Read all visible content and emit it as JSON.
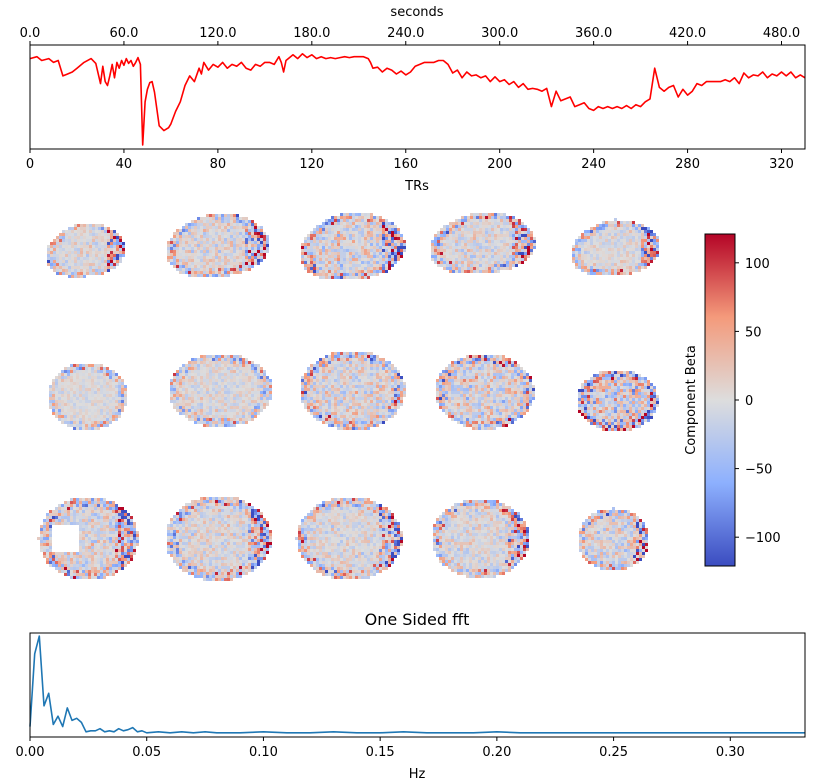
{
  "chart_data": [
    {
      "type": "line",
      "name": "component-timeseries",
      "xlabel": "TRs",
      "x_ticks": [
        0,
        40,
        80,
        120,
        160,
        200,
        240,
        280,
        320
      ],
      "x_tick_labels": [
        "0",
        "40",
        "80",
        "120",
        "160",
        "200",
        "240",
        "280",
        "320"
      ],
      "xlim": [
        0,
        330
      ],
      "top_xlabel": "seconds",
      "top_x_ticks_seconds": [
        0,
        60,
        120,
        180,
        240,
        300,
        360,
        420,
        480
      ],
      "top_x_tick_labels": [
        "0.0",
        "60.0",
        "120.0",
        "180.0",
        "240.0",
        "300.0",
        "360.0",
        "420.0",
        "480.0"
      ],
      "top_xlim": [
        0,
        495
      ],
      "ylim": [
        0,
        1
      ],
      "y_visible": false,
      "line_color": "#ff0000",
      "series_name": "timeseries",
      "x": [
        0,
        3,
        5,
        8,
        10,
        12,
        14,
        16,
        18,
        20,
        23,
        26,
        28,
        30,
        31,
        32,
        33,
        34,
        35,
        36,
        37,
        38,
        39,
        40,
        41,
        42,
        43,
        44,
        45,
        46,
        47,
        48,
        49,
        50,
        51,
        52,
        53,
        55,
        57,
        59,
        60,
        62,
        64,
        66,
        68,
        70,
        72,
        73,
        74,
        76,
        78,
        80,
        82,
        84,
        86,
        88,
        90,
        92,
        94,
        96,
        98,
        100,
        102,
        104,
        106,
        107,
        108,
        109,
        110,
        112,
        114,
        116,
        118,
        120,
        122,
        124,
        126,
        128,
        130,
        132,
        134,
        136,
        138,
        140,
        142,
        144,
        145,
        146,
        148,
        150,
        152,
        154,
        156,
        158,
        160,
        162,
        164,
        166,
        168,
        170,
        172,
        174,
        176,
        178,
        180,
        182,
        184,
        186,
        188,
        190,
        192,
        194,
        196,
        198,
        200,
        202,
        204,
        206,
        208,
        210,
        212,
        214,
        216,
        218,
        220,
        222,
        224,
        226,
        228,
        230,
        232,
        234,
        236,
        238,
        240,
        242,
        244,
        246,
        248,
        250,
        252,
        254,
        256,
        258,
        260,
        262,
        264,
        266,
        268,
        270,
        272,
        274,
        276,
        278,
        280,
        282,
        284,
        286,
        288,
        290,
        292,
        294,
        296,
        298,
        300,
        302,
        304,
        306,
        308,
        310,
        312,
        314,
        316,
        318,
        320,
        322,
        324,
        326,
        328,
        330
      ],
      "y": [
        0.9,
        0.92,
        0.88,
        0.9,
        0.86,
        0.88,
        0.72,
        0.74,
        0.76,
        0.8,
        0.86,
        0.9,
        0.85,
        0.64,
        0.82,
        0.66,
        0.62,
        0.72,
        0.84,
        0.7,
        0.86,
        0.8,
        0.88,
        0.83,
        0.9,
        0.85,
        0.88,
        0.82,
        0.86,
        0.91,
        0.84,
        0.0,
        0.45,
        0.58,
        0.65,
        0.66,
        0.55,
        0.2,
        0.15,
        0.18,
        0.22,
        0.35,
        0.45,
        0.62,
        0.72,
        0.66,
        0.8,
        0.74,
        0.86,
        0.78,
        0.84,
        0.81,
        0.86,
        0.8,
        0.84,
        0.82,
        0.86,
        0.8,
        0.78,
        0.84,
        0.82,
        0.86,
        0.86,
        0.84,
        0.92,
        0.86,
        0.76,
        0.88,
        0.9,
        0.94,
        0.9,
        0.95,
        0.91,
        0.94,
        0.9,
        0.92,
        0.9,
        0.91,
        0.9,
        0.91,
        0.92,
        0.91,
        0.92,
        0.92,
        0.92,
        0.9,
        0.86,
        0.8,
        0.81,
        0.76,
        0.8,
        0.78,
        0.74,
        0.77,
        0.73,
        0.76,
        0.82,
        0.84,
        0.86,
        0.86,
        0.86,
        0.88,
        0.88,
        0.84,
        0.75,
        0.78,
        0.7,
        0.76,
        0.72,
        0.73,
        0.7,
        0.72,
        0.66,
        0.71,
        0.66,
        0.68,
        0.63,
        0.66,
        0.6,
        0.64,
        0.58,
        0.59,
        0.58,
        0.56,
        0.59,
        0.4,
        0.56,
        0.46,
        0.48,
        0.5,
        0.4,
        0.42,
        0.44,
        0.38,
        0.36,
        0.4,
        0.38,
        0.4,
        0.38,
        0.4,
        0.38,
        0.41,
        0.38,
        0.42,
        0.4,
        0.45,
        0.48,
        0.8,
        0.6,
        0.56,
        0.6,
        0.62,
        0.5,
        0.58,
        0.52,
        0.56,
        0.64,
        0.62,
        0.66,
        0.66,
        0.66,
        0.66,
        0.68,
        0.66,
        0.7,
        0.64,
        0.75,
        0.7,
        0.73,
        0.72,
        0.76,
        0.7,
        0.74,
        0.72,
        0.76,
        0.72,
        0.76,
        0.7,
        0.73,
        0.7
      ]
    },
    {
      "type": "heatmap",
      "name": "brain-slices",
      "description_rows": [
        "sagittal",
        "coronal",
        "axial"
      ],
      "rows": 3,
      "cols": 5,
      "colormap": "coolwarm",
      "colorbar_label": "Component Beta",
      "colorbar_ticks": [
        100,
        50,
        0,
        -50,
        -100
      ],
      "colorbar_tick_labels": [
        "100",
        "50",
        "0",
        "−50",
        "−100"
      ],
      "vmin": -121,
      "vmax": 121
    },
    {
      "type": "line",
      "name": "fft",
      "title": "One Sided fft",
      "xlabel": "Hz",
      "x_ticks": [
        0.0,
        0.05,
        0.1,
        0.15,
        0.2,
        0.25,
        0.3
      ],
      "x_tick_labels": [
        "0.00",
        "0.05",
        "0.10",
        "0.15",
        "0.20",
        "0.25",
        "0.30"
      ],
      "xlim": [
        0,
        0.332
      ],
      "ylim": [
        0,
        1
      ],
      "y_visible": false,
      "line_color": "#1f77b4",
      "series_name": "power",
      "x": [
        0.0,
        0.002,
        0.004,
        0.006,
        0.008,
        0.01,
        0.012,
        0.014,
        0.016,
        0.018,
        0.02,
        0.022,
        0.024,
        0.026,
        0.028,
        0.03,
        0.032,
        0.034,
        0.036,
        0.038,
        0.04,
        0.042,
        0.044,
        0.046,
        0.048,
        0.05,
        0.055,
        0.06,
        0.065,
        0.07,
        0.075,
        0.08,
        0.09,
        0.1,
        0.11,
        0.12,
        0.13,
        0.14,
        0.15,
        0.16,
        0.17,
        0.18,
        0.19,
        0.2,
        0.21,
        0.22,
        0.24,
        0.26,
        0.28,
        0.3,
        0.32,
        0.332
      ],
      "y": [
        0.1,
        0.8,
        0.97,
        0.3,
        0.42,
        0.12,
        0.2,
        0.1,
        0.28,
        0.16,
        0.18,
        0.14,
        0.05,
        0.06,
        0.06,
        0.08,
        0.05,
        0.06,
        0.05,
        0.08,
        0.06,
        0.07,
        0.09,
        0.05,
        0.06,
        0.04,
        0.05,
        0.04,
        0.05,
        0.04,
        0.05,
        0.04,
        0.04,
        0.05,
        0.04,
        0.04,
        0.05,
        0.04,
        0.04,
        0.05,
        0.04,
        0.04,
        0.04,
        0.05,
        0.04,
        0.04,
        0.04,
        0.04,
        0.04,
        0.04,
        0.04,
        0.04
      ]
    }
  ]
}
